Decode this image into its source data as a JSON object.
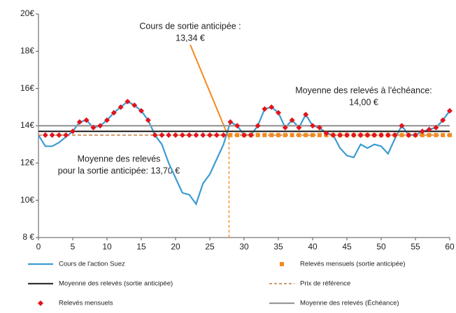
{
  "chart_data": {
    "type": "line",
    "xlim": [
      0,
      60
    ],
    "xticks": [
      0,
      5,
      10,
      15,
      20,
      25,
      30,
      35,
      40,
      45,
      50,
      55,
      60
    ],
    "ylim": [
      8,
      20
    ],
    "yticks": [
      {
        "value": 8,
        "label": "8 €"
      },
      {
        "value": 10,
        "label": "10€"
      },
      {
        "value": 12,
        "label": "12€"
      },
      {
        "value": 14,
        "label": "14€"
      },
      {
        "value": 16,
        "label": "16€"
      },
      {
        "value": 18,
        "label": "18€"
      },
      {
        "value": 20,
        "label": "20€"
      }
    ],
    "series": [
      {
        "name": "Cours de l'action Suez",
        "style": "line",
        "color": "#3c9bd1",
        "x": [
          0,
          1,
          2,
          3,
          4,
          5,
          6,
          7,
          8,
          9,
          10,
          11,
          12,
          13,
          14,
          15,
          16,
          17,
          18,
          19,
          20,
          21,
          22,
          23,
          24,
          25,
          26,
          27,
          28,
          29,
          30,
          31,
          32,
          33,
          34,
          35,
          36,
          37,
          38,
          39,
          40,
          41,
          42,
          43,
          44,
          45,
          46,
          47,
          48,
          49,
          50,
          51,
          52,
          53,
          54,
          55,
          56,
          57,
          58,
          59,
          60
        ],
        "values": [
          13.5,
          12.9,
          12.9,
          13.1,
          13.4,
          13.7,
          14.2,
          14.3,
          13.9,
          14.0,
          14.3,
          14.7,
          15.0,
          15.3,
          15.1,
          14.8,
          14.3,
          13.5,
          13.0,
          12.0,
          11.2,
          10.4,
          10.3,
          9.8,
          10.9,
          11.4,
          12.2,
          13.0,
          14.2,
          14.0,
          13.5,
          13.5,
          14.0,
          14.9,
          15.0,
          14.7,
          13.9,
          14.3,
          13.9,
          14.6,
          14.0,
          13.9,
          13.6,
          13.5,
          12.8,
          12.4,
          12.3,
          13.0,
          12.8,
          13.0,
          12.9,
          12.5,
          13.3,
          14.0,
          13.5,
          13.5,
          13.7,
          13.8,
          13.9,
          14.3,
          14.8
        ]
      },
      {
        "name": "Relevés mensuels (sortie anticipée)",
        "style": "square",
        "color": "#f28a1e",
        "x": [
          28,
          29,
          30,
          31,
          32,
          33,
          34,
          35,
          36,
          37,
          38,
          39,
          40,
          41,
          42,
          43,
          44,
          45,
          46,
          47,
          48,
          49,
          50,
          51,
          52,
          53,
          54,
          55,
          56,
          57,
          58,
          59,
          60
        ],
        "values": [
          13.5,
          13.5,
          13.5,
          13.5,
          13.5,
          13.5,
          13.5,
          13.5,
          13.5,
          13.5,
          13.5,
          13.5,
          13.5,
          13.5,
          13.5,
          13.5,
          13.5,
          13.5,
          13.5,
          13.5,
          13.5,
          13.5,
          13.5,
          13.5,
          13.5,
          13.5,
          13.5,
          13.5,
          13.5,
          13.5,
          13.5,
          13.5,
          13.5
        ]
      },
      {
        "name": "Moyenne des relevés (sortie anticipée)",
        "style": "line",
        "color": "#333333",
        "x": [
          0,
          60
        ],
        "values": [
          13.7,
          13.7
        ]
      },
      {
        "name": "Prix de référence",
        "style": "dashed",
        "color": "#c07a3a",
        "x": [
          0,
          60
        ],
        "values": [
          13.5,
          13.5
        ]
      },
      {
        "name": "Relevés mensuels",
        "style": "diamond",
        "color": "#e3141b",
        "x": [
          1,
          2,
          3,
          4,
          5,
          6,
          7,
          8,
          9,
          10,
          11,
          12,
          13,
          14,
          15,
          16,
          17,
          18,
          19,
          20,
          21,
          22,
          23,
          24,
          25,
          26,
          27,
          28,
          29,
          30,
          31,
          32,
          33,
          34,
          35,
          36,
          37,
          38,
          39,
          40,
          41,
          42,
          43,
          44,
          45,
          46,
          47,
          48,
          49,
          50,
          51,
          52,
          53,
          54,
          55,
          56,
          57,
          58,
          59,
          60
        ],
        "values": [
          13.5,
          13.5,
          13.5,
          13.5,
          13.7,
          14.2,
          14.3,
          13.9,
          14.0,
          14.3,
          14.7,
          15.0,
          15.3,
          15.1,
          14.8,
          14.3,
          13.5,
          13.5,
          13.5,
          13.5,
          13.5,
          13.5,
          13.5,
          13.5,
          13.5,
          13.5,
          13.5,
          14.2,
          14.0,
          13.5,
          13.5,
          14.0,
          14.9,
          15.0,
          14.7,
          13.9,
          14.3,
          13.9,
          14.6,
          14.0,
          13.9,
          13.6,
          13.5,
          13.5,
          13.5,
          13.5,
          13.5,
          13.5,
          13.5,
          13.5,
          13.5,
          13.5,
          14.0,
          13.5,
          13.5,
          13.7,
          13.8,
          13.9,
          14.3,
          14.8
        ]
      },
      {
        "name": "Moyenne des relevés (Échéance)",
        "style": "line",
        "color": "#999999",
        "x": [
          0,
          60
        ],
        "values": [
          14.0,
          14.0
        ]
      }
    ],
    "annotations": [
      {
        "lines": [
          "Cours de sortie anticipée :",
          "13,34 €"
        ],
        "x": 27.8,
        "y": 13.34,
        "color": "#f28a1e"
      },
      {
        "lines": [
          "Moyenne des relevés à l'échéance:",
          "14,00 €"
        ]
      },
      {
        "lines": [
          "Moyenne des relevés",
          "pour la sortie anticipée: 13,70 €"
        ]
      }
    ]
  }
}
